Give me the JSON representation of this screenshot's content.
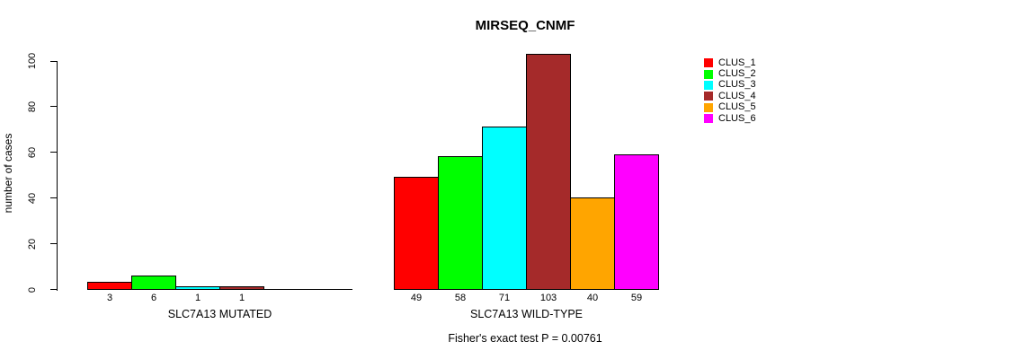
{
  "chart_data": {
    "type": "bar",
    "title": "MIRSEQ_CNMF",
    "ylabel": "number of cases",
    "xlabel": "",
    "ylim": [
      0,
      100
    ],
    "yticks": [
      0,
      20,
      40,
      60,
      80,
      100
    ],
    "grid": false,
    "legend_position": "right-outside",
    "background": "#ffffff",
    "series": [
      {
        "name": "CLUS_1",
        "color": "#FF0000"
      },
      {
        "name": "CLUS_2",
        "color": "#00FF00"
      },
      {
        "name": "CLUS_3",
        "color": "#00FFFF"
      },
      {
        "name": "CLUS_4",
        "color": "#A52A2A"
      },
      {
        "name": "CLUS_5",
        "color": "#FFA500"
      },
      {
        "name": "CLUS_6",
        "color": "#FF00FF"
      }
    ],
    "groups": [
      {
        "label": "SLC7A13 MUTATED",
        "values": [
          3,
          6,
          1,
          1,
          0,
          0
        ],
        "bar_labels": [
          "3",
          "6",
          "1",
          "1",
          "",
          ""
        ]
      },
      {
        "label": "SLC7A13 WILD-TYPE",
        "values": [
          49,
          58,
          71,
          103,
          40,
          59
        ],
        "bar_labels": [
          "49",
          "58",
          "71",
          "103",
          "40",
          "59"
        ]
      }
    ],
    "annotation": "Fisher's exact test P = 0.00761"
  }
}
